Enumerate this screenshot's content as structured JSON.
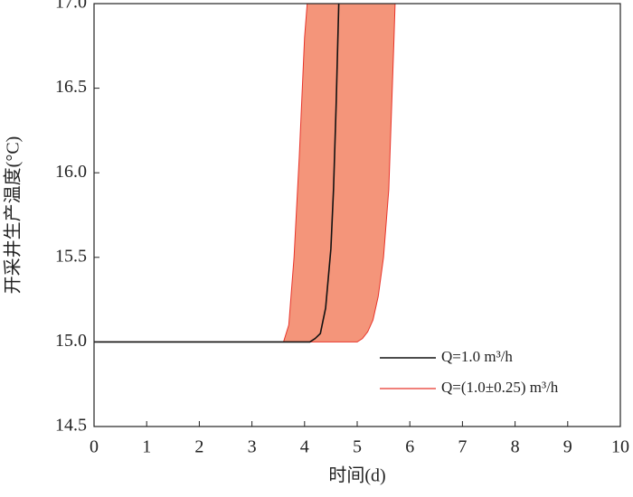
{
  "chart_data": {
    "type": "line",
    "x_label": "时间(d)",
    "y_label": "开采井生产温度(°C)",
    "xlim": [
      0,
      10
    ],
    "xticks": [
      0,
      1,
      2,
      3,
      4,
      5,
      6,
      7,
      8,
      9,
      10
    ],
    "ylim": [
      14.5,
      17.0
    ],
    "yticks": [
      14.5,
      {
        "value": 15,
        "label": "15.0"
      },
      15.5,
      {
        "value": 16,
        "label": "16.0"
      },
      16.5,
      {
        "value": 17,
        "label": "17.0"
      }
    ],
    "series": [
      {
        "name": "Q=1.0 m³/h",
        "color": "#111111",
        "x": [
          0,
          4.1,
          4.2,
          4.3,
          4.4,
          4.5,
          4.55,
          4.6,
          4.65
        ],
        "values": [
          15,
          15,
          15.02,
          15.05,
          15.2,
          15.55,
          15.9,
          16.4,
          17
        ]
      }
    ],
    "band": {
      "name": "Q=(1.0±0.25) m³/h",
      "color": "#f4957a",
      "edge_color": "#e8342a",
      "upper": {
        "x": [
          0,
          3.6,
          3.7,
          3.8,
          3.9,
          4.0,
          4.05
        ],
        "values": [
          15,
          15,
          15.1,
          15.5,
          16.1,
          16.8,
          17
        ]
      },
      "lower": {
        "x": [
          0,
          4.9,
          5.0,
          5.1,
          5.2,
          5.3,
          5.4,
          5.5,
          5.6,
          5.7,
          5.72
        ],
        "values": [
          15,
          15,
          15,
          15.02,
          15.06,
          15.13,
          15.27,
          15.5,
          15.9,
          16.8,
          17
        ]
      }
    }
  }
}
